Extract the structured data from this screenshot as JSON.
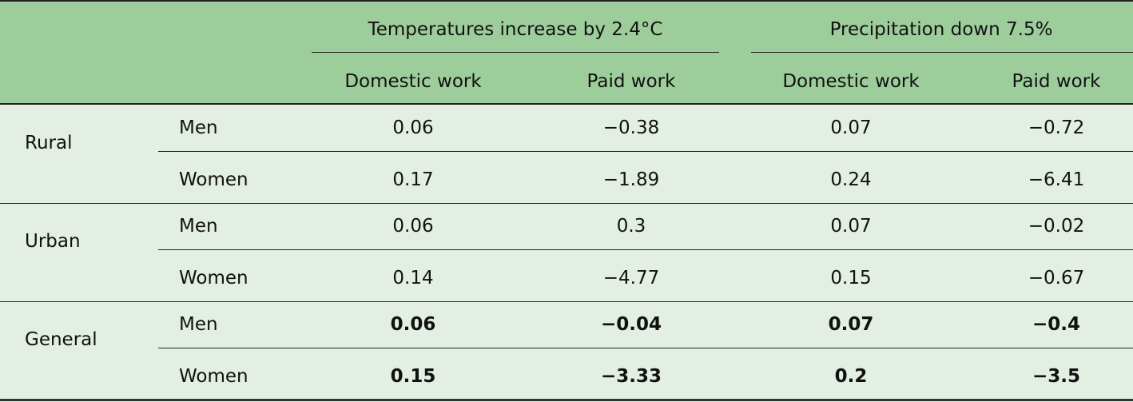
{
  "header": {
    "groups": [
      "Temperatures increase by 2.4°C",
      "Precipitation down 7.5%"
    ],
    "columns": [
      "Domestic work",
      "Paid work",
      "Domestic work",
      "Paid work"
    ]
  },
  "body": [
    {
      "group": "Rural",
      "rows": [
        {
          "sex": "Men",
          "values": [
            "0.06",
            "−0.38",
            "0.07",
            "−0.72"
          ]
        },
        {
          "sex": "Women",
          "values": [
            "0.17",
            "−1.89",
            "0.24",
            "−6.41"
          ]
        }
      ]
    },
    {
      "group": "Urban",
      "rows": [
        {
          "sex": "Men",
          "values": [
            "0.06",
            "0.3",
            "0.07",
            "−0.02"
          ]
        },
        {
          "sex": "Women",
          "values": [
            "0.14",
            "−4.77",
            "0.15",
            "−0.67"
          ]
        }
      ]
    },
    {
      "group": "General",
      "bold": true,
      "rows": [
        {
          "sex": "Men",
          "values": [
            "0.06",
            "−0.04",
            "0.07",
            "−0.4"
          ]
        },
        {
          "sex": "Women",
          "values": [
            "0.15",
            "−3.33",
            "0.2",
            "−3.5"
          ]
        }
      ]
    }
  ],
  "colors": {
    "header_bg": "#9ecd9c",
    "body_bg": "#e3efe3"
  }
}
